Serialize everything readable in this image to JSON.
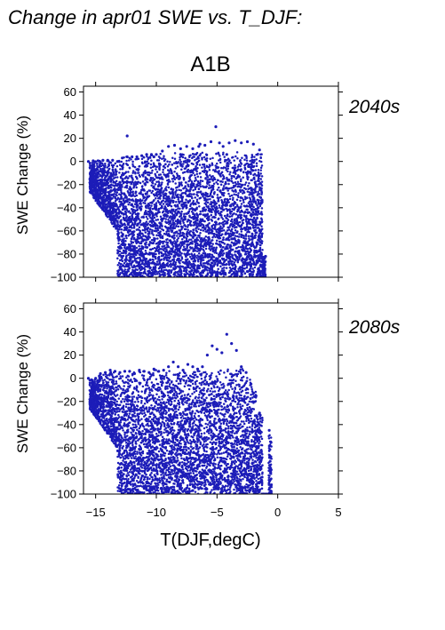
{
  "figure": {
    "title": "Change in apr01 SWE vs. T_DJF:",
    "scenario": "A1B",
    "xlabel": "T(DJF,degC)",
    "point_color": "#1c1cb8",
    "label_color": "#2424b0"
  },
  "chart_data": [
    {
      "type": "scatter",
      "period": "2040s",
      "ylabel": "SWE Change (%)",
      "xlim": [
        -16,
        5
      ],
      "ylim": [
        -100,
        65
      ],
      "xticks": [
        -15,
        -10,
        -5,
        0,
        5
      ],
      "yticks": [
        -100,
        -80,
        -60,
        -40,
        -20,
        0,
        20,
        40,
        60
      ],
      "ytick_labels": [
        "−100",
        "−80",
        "−60",
        "−40",
        "−20",
        "0",
        "20",
        "40",
        "60"
      ],
      "grid": false,
      "series": [
        {
          "points": [
            [
              -15.6,
              0
            ],
            [
              -15.2,
              0.5
            ],
            [
              -14.8,
              0.5
            ],
            [
              -14.4,
              1
            ],
            [
              -14.0,
              1
            ],
            [
              -13.6,
              1
            ],
            [
              -13.2,
              0
            ],
            [
              -12.8,
              3
            ],
            [
              -12.4,
              4
            ],
            [
              -12.0,
              4
            ],
            [
              -11.6,
              4
            ],
            [
              -11.2,
              5
            ],
            [
              -10.8,
              6
            ],
            [
              -10.4,
              6
            ],
            [
              -10.0,
              6
            ],
            [
              -9.5,
              9
            ],
            [
              -9.0,
              13
            ],
            [
              -8.5,
              14
            ],
            [
              -8.0,
              11
            ],
            [
              -7.5,
              13
            ],
            [
              -7.0,
              11
            ],
            [
              -6.5,
              13
            ],
            [
              -6.0,
              14
            ],
            [
              -5.5,
              17
            ],
            [
              -5.1,
              30
            ],
            [
              -4.8,
              16
            ],
            [
              -4.5,
              13
            ],
            [
              -4.0,
              16
            ],
            [
              -3.5,
              18
            ],
            [
              -3.0,
              16
            ],
            [
              -2.5,
              17
            ],
            [
              -2.0,
              15
            ],
            [
              -1.5,
              10
            ],
            [
              -12.4,
              22
            ],
            [
              -10.2,
              4
            ],
            [
              -8.0,
              6
            ],
            [
              -6.4,
              15
            ],
            [
              -4.2,
              6
            ],
            [
              -2.1,
              1
            ],
            [
              -13.0,
              -18
            ],
            [
              -12.6,
              -35
            ],
            [
              -12.2,
              -60
            ],
            [
              -11.8,
              -75
            ],
            [
              -11.5,
              -90
            ],
            [
              -11.0,
              -100
            ],
            [
              -10.5,
              -85
            ],
            [
              -10.0,
              -60
            ],
            [
              -9.5,
              -90
            ],
            [
              -9.0,
              -100
            ],
            [
              -8.5,
              -78
            ],
            [
              -8.0,
              -100
            ],
            [
              -7.5,
              -88
            ],
            [
              -7.0,
              -100
            ],
            [
              -6.5,
              -92
            ],
            [
              -6.0,
              -100
            ],
            [
              -5.5,
              -90
            ],
            [
              -5.0,
              -100
            ],
            [
              -4.5,
              -95
            ],
            [
              -4.0,
              -100
            ],
            [
              -3.5,
              -98
            ],
            [
              -3.0,
              -100
            ],
            [
              -2.5,
              -95
            ],
            [
              -2.0,
              -100
            ],
            [
              -1.5,
              -97
            ],
            [
              -1.2,
              -90
            ],
            [
              -1.0,
              -82
            ],
            [
              -1.4,
              -60
            ],
            [
              -1.6,
              -40
            ],
            [
              -1.8,
              -20
            ],
            [
              -2.2,
              -5
            ]
          ]
        }
      ]
    },
    {
      "type": "scatter",
      "period": "2080s",
      "ylabel": "SWE Change (%)",
      "xlim": [
        -16,
        5
      ],
      "ylim": [
        -100,
        65
      ],
      "xticks": [
        -15,
        -10,
        -5,
        0,
        5
      ],
      "xtick_labels": [
        "−15",
        "−10",
        "−5",
        "0",
        "5"
      ],
      "yticks": [
        -100,
        -80,
        -60,
        -40,
        -20,
        0,
        20,
        40,
        60
      ],
      "ytick_labels": [
        "−100",
        "−80",
        "−60",
        "−40",
        "−20",
        "0",
        "20",
        "40",
        "60"
      ],
      "grid": false,
      "series": [
        {
          "points": [
            [
              -15.6,
              0
            ],
            [
              -15.3,
              -2
            ],
            [
              -15.0,
              0
            ],
            [
              -14.6,
              4
            ],
            [
              -14.2,
              5
            ],
            [
              -13.8,
              7
            ],
            [
              -13.4,
              6
            ],
            [
              -13.0,
              5
            ],
            [
              -12.6,
              6
            ],
            [
              -12.2,
              6
            ],
            [
              -11.8,
              4
            ],
            [
              -11.4,
              7
            ],
            [
              -11.0,
              6
            ],
            [
              -10.6,
              5
            ],
            [
              -10.2,
              8
            ],
            [
              -9.8,
              6
            ],
            [
              -9.4,
              7
            ],
            [
              -9.0,
              10
            ],
            [
              -8.6,
              14
            ],
            [
              -8.2,
              10
            ],
            [
              -7.8,
              7
            ],
            [
              -7.4,
              12
            ],
            [
              -7.0,
              10
            ],
            [
              -6.6,
              8
            ],
            [
              -6.2,
              10
            ],
            [
              -5.8,
              20
            ],
            [
              -5.4,
              28
            ],
            [
              -5.0,
              25
            ],
            [
              -4.6,
              22
            ],
            [
              -4.2,
              38
            ],
            [
              -3.8,
              30
            ],
            [
              -3.4,
              24
            ],
            [
              -3.0,
              10
            ],
            [
              -2.6,
              5
            ],
            [
              -2.2,
              -5
            ],
            [
              -1.8,
              -15
            ],
            [
              -1.5,
              -30
            ],
            [
              -0.7,
              -45
            ],
            [
              -1.6,
              -60
            ],
            [
              -1.9,
              -80
            ],
            [
              -1.2,
              -100
            ],
            [
              -14.5,
              -20
            ],
            [
              -13.6,
              -30
            ],
            [
              -13.0,
              -55
            ],
            [
              -12.6,
              -75
            ],
            [
              -12.4,
              -90
            ],
            [
              -12.0,
              -100
            ],
            [
              -11.0,
              -95
            ],
            [
              -10.0,
              -100
            ],
            [
              -9.0,
              -98
            ],
            [
              -8.0,
              -100
            ],
            [
              -7.0,
              -97
            ],
            [
              -6.0,
              -100
            ],
            [
              -5.0,
              -95
            ],
            [
              -4.0,
              -100
            ],
            [
              -3.0,
              -97
            ],
            [
              -2.2,
              -95
            ]
          ]
        }
      ]
    }
  ]
}
